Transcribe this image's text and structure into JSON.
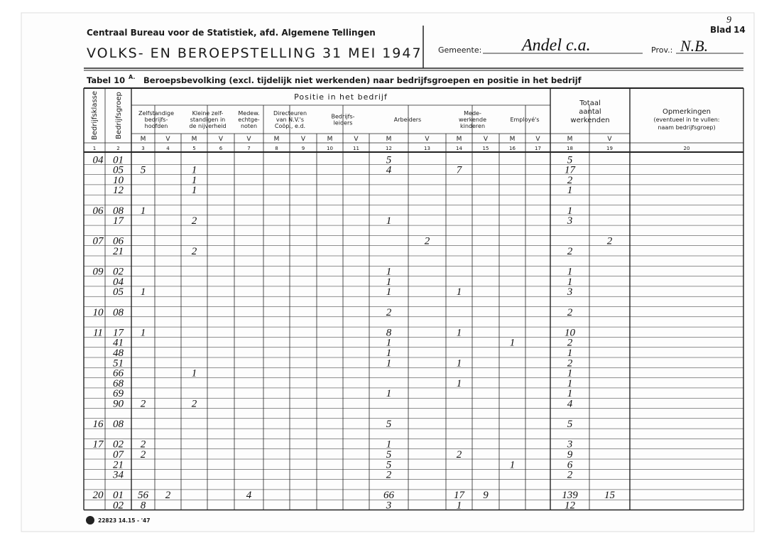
{
  "header": {
    "org": "Centraal Bureau voor de Statistiek, afd. Algemene Tellingen",
    "title": "VOLKS- EN BEROEPSTELLING 31 MEI 1947",
    "gemeente_label": "Gemeente:",
    "gemeente": "Andel c.a.",
    "prov_label": "Prov.:",
    "prov": "N.B.",
    "blad_label": "Blad",
    "blad": "14",
    "blad_mark": "9"
  },
  "table": {
    "tabel": "Tabel 10",
    "sup": "A.",
    "title": "Beroepsbevolking (excl. tijdelijk niet werkenden) naar bedrijfsgroepen en positie in het bedrijf",
    "col_klasse": "Bedrijfsklasse",
    "col_groep": "Bedrijfsgroep",
    "positie": "Positie in het bedrijf",
    "groups": [
      [
        "Zelfstandige",
        "bedrijfs-",
        "hoofden"
      ],
      [
        "Kleine zelf-",
        "standigen in",
        "de nijverheid"
      ],
      [
        "Medew.",
        "echtge-",
        "noten"
      ],
      [
        "Directeuren",
        "van N.V.'s",
        "Coöp., e.d."
      ],
      [
        "Bedrijfs-",
        "leiders"
      ],
      [
        "Arbeiders"
      ],
      [
        "Mede-",
        "werkende",
        "kinderen"
      ],
      [
        "Employé's"
      ]
    ],
    "totaal": [
      "Totaal",
      "aantal",
      "werkenden"
    ],
    "opmerkingen": [
      "Opmerkingen",
      "(eventueel in te vullen:",
      "naam bedrijfsgroep)"
    ],
    "sex": [
      "M",
      "V",
      "M",
      "V",
      "V",
      "M",
      "V",
      "M",
      "V",
      "M",
      "V",
      "M",
      "V",
      "M",
      "V",
      "M",
      "V"
    ],
    "numbers": [
      1,
      2,
      3,
      4,
      5,
      6,
      7,
      8,
      9,
      10,
      11,
      12,
      13,
      14,
      15,
      16,
      17,
      18,
      19,
      20
    ],
    "rows": [
      [
        "04",
        "01",
        null,
        null,
        null,
        null,
        null,
        null,
        null,
        null,
        null,
        5,
        null,
        null,
        null,
        null,
        null,
        5,
        null,
        null
      ],
      [
        null,
        "05",
        5,
        null,
        1,
        null,
        null,
        null,
        null,
        null,
        null,
        4,
        null,
        7,
        null,
        null,
        null,
        17,
        null,
        null
      ],
      [
        null,
        "10",
        null,
        null,
        1,
        null,
        null,
        null,
        null,
        null,
        null,
        null,
        null,
        null,
        null,
        null,
        null,
        2,
        null,
        null
      ],
      [
        null,
        "12",
        null,
        null,
        1,
        null,
        null,
        null,
        null,
        null,
        null,
        null,
        null,
        null,
        null,
        null,
        null,
        1,
        null,
        null
      ],
      [
        null,
        null,
        null,
        null,
        null,
        null,
        null,
        null,
        null,
        null,
        null,
        null,
        null,
        null,
        null,
        null,
        null,
        null,
        null,
        null
      ],
      [
        "06",
        "08",
        1,
        null,
        null,
        null,
        null,
        null,
        null,
        null,
        null,
        null,
        null,
        null,
        null,
        null,
        null,
        1,
        null,
        null
      ],
      [
        null,
        "17",
        null,
        null,
        2,
        null,
        null,
        null,
        null,
        null,
        null,
        1,
        null,
        null,
        null,
        null,
        null,
        3,
        null,
        null
      ],
      [
        null,
        null,
        null,
        null,
        null,
        null,
        null,
        null,
        null,
        null,
        null,
        null,
        null,
        null,
        null,
        null,
        null,
        null,
        null,
        null
      ],
      [
        "07",
        "06",
        null,
        null,
        null,
        null,
        null,
        null,
        null,
        null,
        null,
        null,
        2,
        null,
        null,
        null,
        null,
        null,
        2,
        null
      ],
      [
        null,
        "21",
        null,
        null,
        2,
        null,
        null,
        null,
        null,
        null,
        null,
        null,
        null,
        null,
        null,
        null,
        null,
        2,
        null,
        null
      ],
      [
        null,
        null,
        null,
        null,
        null,
        null,
        null,
        null,
        null,
        null,
        null,
        null,
        null,
        null,
        null,
        null,
        null,
        null,
        null,
        null
      ],
      [
        "09",
        "02",
        null,
        null,
        null,
        null,
        null,
        null,
        null,
        null,
        null,
        1,
        null,
        null,
        null,
        null,
        null,
        1,
        null,
        null
      ],
      [
        null,
        "04",
        null,
        null,
        null,
        null,
        null,
        null,
        null,
        null,
        null,
        1,
        null,
        null,
        null,
        null,
        null,
        1,
        null,
        null
      ],
      [
        null,
        "05",
        1,
        null,
        null,
        null,
        null,
        null,
        null,
        null,
        null,
        1,
        null,
        1,
        null,
        null,
        null,
        3,
        null,
        null
      ],
      [
        null,
        null,
        null,
        null,
        null,
        null,
        null,
        null,
        null,
        null,
        null,
        null,
        null,
        null,
        null,
        null,
        null,
        null,
        null,
        null
      ],
      [
        "10",
        "08",
        null,
        null,
        null,
        null,
        null,
        null,
        null,
        null,
        null,
        2,
        null,
        null,
        null,
        null,
        null,
        2,
        null,
        null
      ],
      [
        null,
        null,
        null,
        null,
        null,
        null,
        null,
        null,
        null,
        null,
        null,
        null,
        null,
        null,
        null,
        null,
        null,
        null,
        null,
        null
      ],
      [
        "11",
        "17",
        1,
        null,
        null,
        null,
        null,
        null,
        null,
        null,
        null,
        8,
        null,
        1,
        null,
        null,
        null,
        10,
        null,
        null
      ],
      [
        null,
        "41",
        null,
        null,
        null,
        null,
        null,
        null,
        null,
        null,
        null,
        1,
        null,
        null,
        null,
        1,
        null,
        2,
        null,
        null
      ],
      [
        null,
        "48",
        null,
        null,
        null,
        null,
        null,
        null,
        null,
        null,
        null,
        1,
        null,
        null,
        null,
        null,
        null,
        1,
        null,
        null
      ],
      [
        null,
        "51",
        null,
        null,
        null,
        null,
        null,
        null,
        null,
        null,
        null,
        1,
        null,
        1,
        null,
        null,
        null,
        2,
        null,
        null
      ],
      [
        null,
        "66",
        null,
        null,
        1,
        null,
        null,
        null,
        null,
        null,
        null,
        null,
        null,
        null,
        null,
        null,
        null,
        1,
        null,
        null
      ],
      [
        null,
        "68",
        null,
        null,
        null,
        null,
        null,
        null,
        null,
        null,
        null,
        null,
        null,
        1,
        null,
        null,
        null,
        1,
        null,
        null
      ],
      [
        null,
        "69",
        null,
        null,
        null,
        null,
        null,
        null,
        null,
        null,
        null,
        1,
        null,
        null,
        null,
        null,
        null,
        1,
        null,
        null
      ],
      [
        null,
        "90",
        2,
        null,
        2,
        null,
        null,
        null,
        null,
        null,
        null,
        null,
        null,
        null,
        null,
        null,
        null,
        4,
        null,
        null
      ],
      [
        null,
        null,
        null,
        null,
        null,
        null,
        null,
        null,
        null,
        null,
        null,
        null,
        null,
        null,
        null,
        null,
        null,
        null,
        null,
        null
      ],
      [
        "16",
        "08",
        null,
        null,
        null,
        null,
        null,
        null,
        null,
        null,
        null,
        5,
        null,
        null,
        null,
        null,
        null,
        5,
        null,
        null
      ],
      [
        null,
        null,
        null,
        null,
        null,
        null,
        null,
        null,
        null,
        null,
        null,
        null,
        null,
        null,
        null,
        null,
        null,
        null,
        null,
        null
      ],
      [
        "17",
        "02",
        2,
        null,
        null,
        null,
        null,
        null,
        null,
        null,
        null,
        1,
        null,
        null,
        null,
        null,
        null,
        3,
        null,
        null
      ],
      [
        null,
        "07",
        2,
        null,
        null,
        null,
        null,
        null,
        null,
        null,
        null,
        5,
        null,
        2,
        null,
        null,
        null,
        9,
        null,
        null
      ],
      [
        null,
        "21",
        null,
        null,
        null,
        null,
        null,
        null,
        null,
        null,
        null,
        5,
        null,
        null,
        null,
        1,
        null,
        6,
        null,
        null
      ],
      [
        null,
        "34",
        null,
        null,
        null,
        null,
        null,
        null,
        null,
        null,
        null,
        2,
        null,
        null,
        null,
        null,
        null,
        2,
        null,
        null
      ],
      [
        null,
        null,
        null,
        null,
        null,
        null,
        null,
        null,
        null,
        null,
        null,
        null,
        null,
        null,
        null,
        null,
        null,
        null,
        null,
        null
      ],
      [
        "20",
        "01",
        56,
        2,
        null,
        null,
        4,
        null,
        null,
        null,
        null,
        66,
        null,
        17,
        9,
        null,
        null,
        139,
        15,
        null
      ],
      [
        null,
        "02",
        8,
        null,
        null,
        null,
        null,
        null,
        null,
        null,
        null,
        3,
        null,
        1,
        null,
        null,
        null,
        12,
        null,
        null
      ]
    ]
  },
  "footer": {
    "code": "22823 14.15 - '47"
  }
}
